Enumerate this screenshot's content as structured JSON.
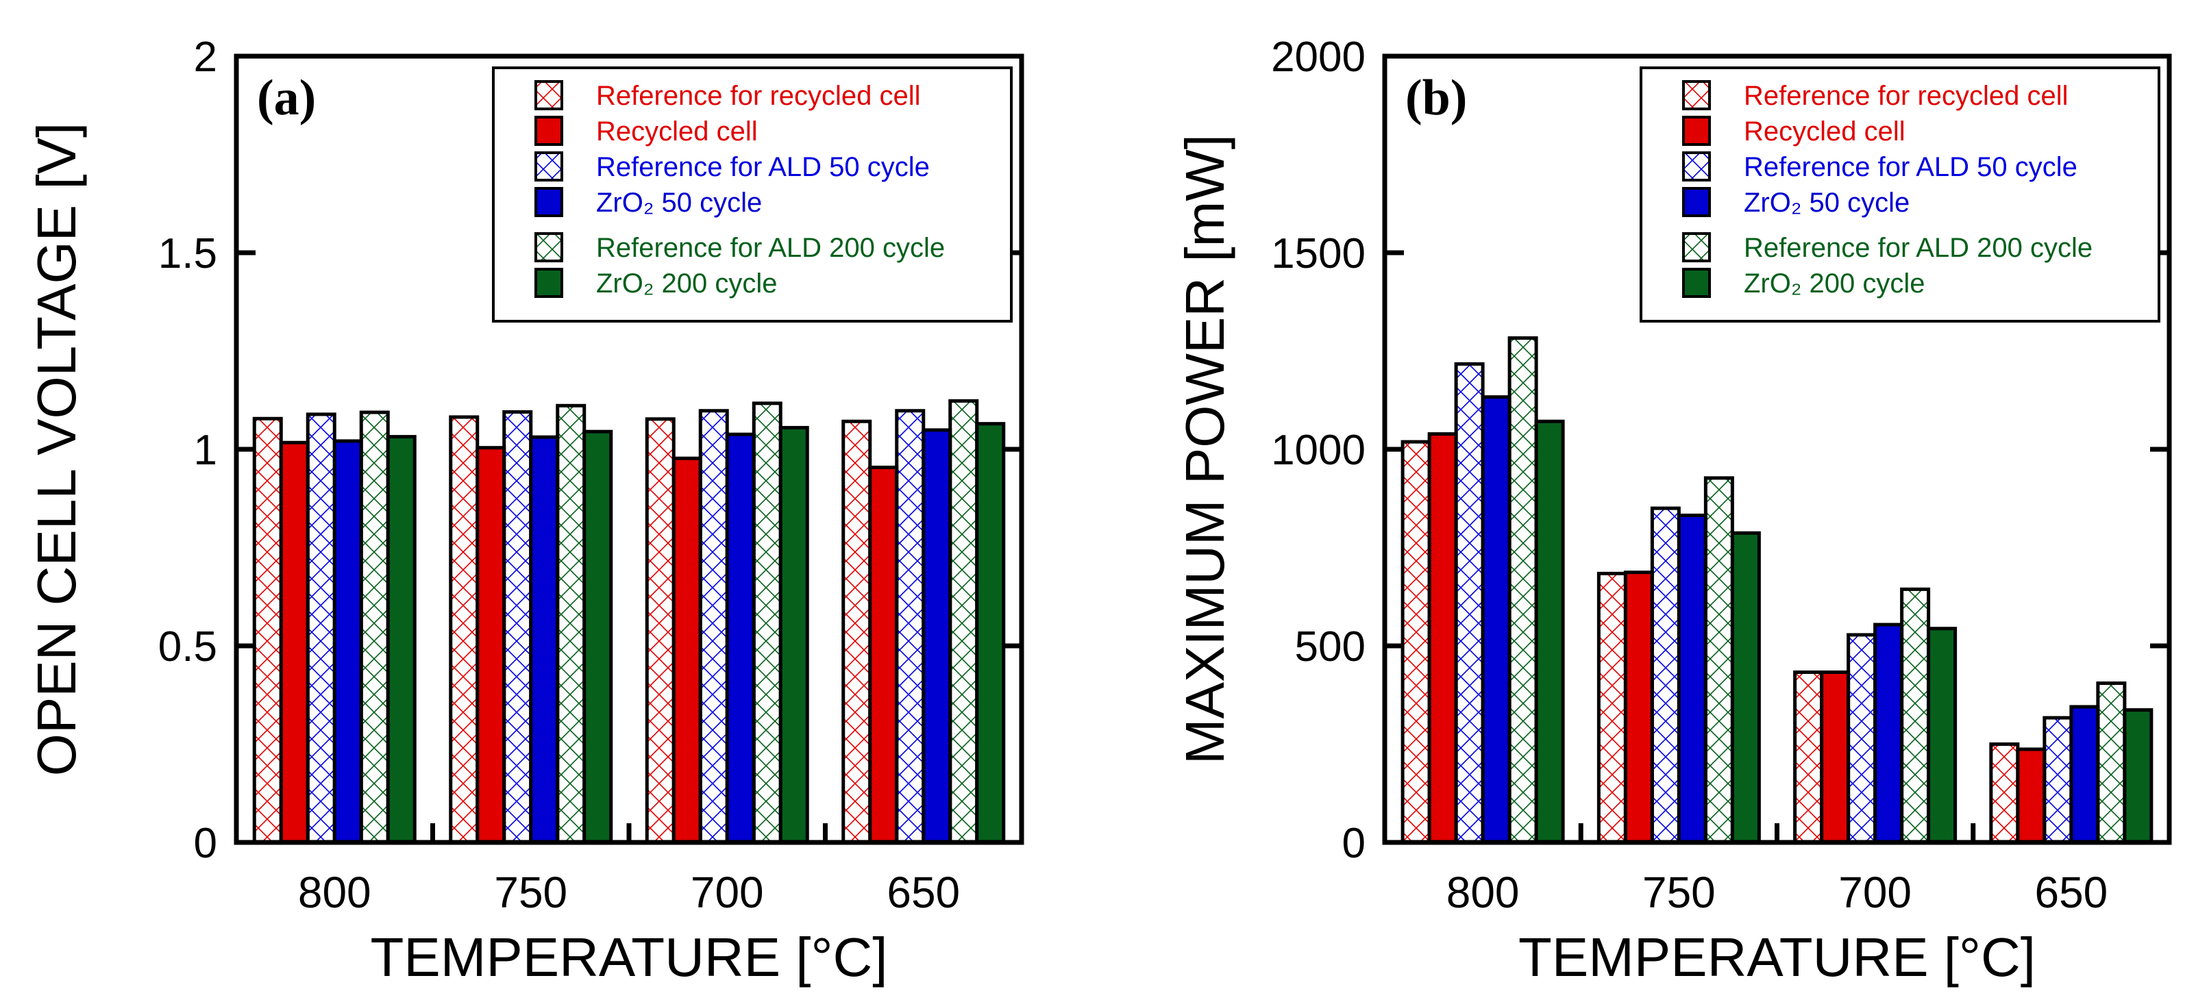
{
  "chart_data": [
    {
      "type": "bar",
      "panel_label": "(a)",
      "title": "",
      "xlabel": "TEMPERATURE [°C]",
      "ylabel": "OPEN CELL VOLTAGE [V]",
      "ylim": [
        0,
        2
      ],
      "yticks": [
        0,
        0.5,
        1,
        1.5,
        2
      ],
      "ytick_labels": [
        "0",
        "0.5",
        "1",
        "1.5",
        "2"
      ],
      "categories": [
        "800",
        "750",
        "700",
        "650"
      ],
      "legend_position": "top-right",
      "grid": false,
      "series": [
        {
          "name": "Reference for recycled cell",
          "color": "#e00000",
          "hatched": true,
          "values": [
            1.078,
            1.082,
            1.077,
            1.071
          ]
        },
        {
          "name": "Recycled cell",
          "color": "#e00000",
          "hatched": false,
          "values": [
            1.017,
            1.004,
            0.977,
            0.954
          ]
        },
        {
          "name": "Reference for ALD 50 cycle",
          "color": "#0000e0",
          "hatched": true,
          "values": [
            1.089,
            1.095,
            1.098,
            1.098
          ]
        },
        {
          "name": "ZrO₂ 50 cycle",
          "color": "#0000d0",
          "hatched": false,
          "values": [
            1.021,
            1.031,
            1.038,
            1.049
          ]
        },
        {
          "name": "Reference for ALD 200 cycle",
          "color": "#06601c",
          "hatched": true,
          "values": [
            1.094,
            1.111,
            1.117,
            1.123
          ]
        },
        {
          "name": "ZrO₂ 200 cycle",
          "color": "#06601c",
          "hatched": false,
          "values": [
            1.032,
            1.045,
            1.055,
            1.065
          ]
        }
      ]
    },
    {
      "type": "bar",
      "panel_label": "(b)",
      "title": "",
      "xlabel": "TEMPERATURE [°C]",
      "ylabel": "MAXIMUM POWER [mW]",
      "ylim": [
        0,
        2000
      ],
      "yticks": [
        0,
        500,
        1000,
        1500,
        2000
      ],
      "ytick_labels": [
        "0",
        "500",
        "1000",
        "1500",
        "2000"
      ],
      "categories": [
        "800",
        "750",
        "700",
        "650"
      ],
      "legend_position": "top-right",
      "grid": false,
      "series": [
        {
          "name": "Reference for recycled cell",
          "color": "#e00000",
          "hatched": true,
          "values": [
            1019,
            684,
            433,
            250
          ]
        },
        {
          "name": "Recycled cell",
          "color": "#e00000",
          "hatched": false,
          "values": [
            1039,
            687,
            433,
            237
          ]
        },
        {
          "name": "Reference for ALD 50 cycle",
          "color": "#0000e0",
          "hatched": true,
          "values": [
            1217,
            850,
            528,
            317
          ]
        },
        {
          "name": "ZrO₂ 50 cycle",
          "color": "#0000d0",
          "hatched": false,
          "values": [
            1133,
            832,
            554,
            345
          ]
        },
        {
          "name": "Reference for ALD 200 cycle",
          "color": "#06601c",
          "hatched": true,
          "values": [
            1283,
            927,
            644,
            405
          ]
        },
        {
          "name": "ZrO₂ 200 cycle",
          "color": "#06601c",
          "hatched": false,
          "values": [
            1071,
            787,
            544,
            337
          ]
        }
      ]
    }
  ]
}
